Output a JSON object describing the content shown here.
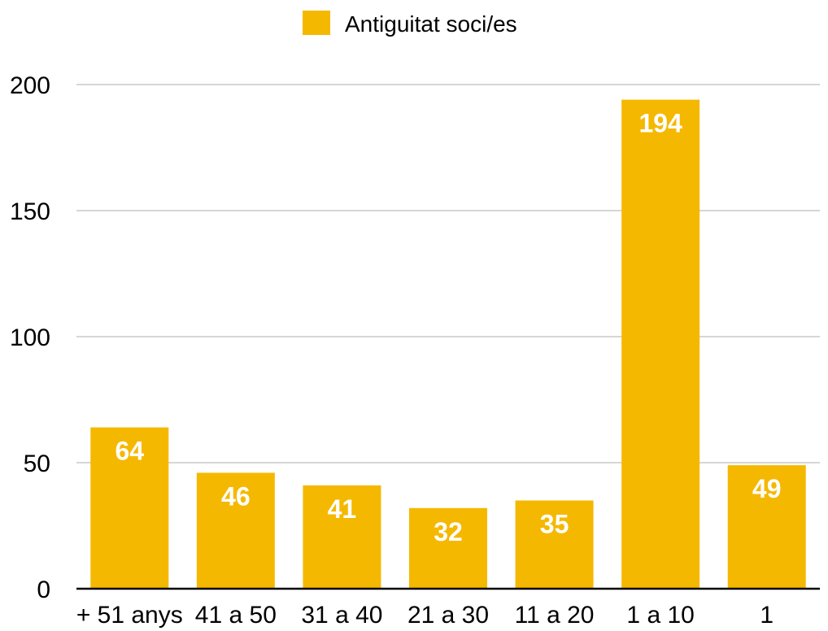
{
  "chart_data": {
    "type": "bar",
    "title": "",
    "xlabel": "",
    "ylabel": "",
    "categories": [
      "+ 51 anys",
      "41 a 50",
      "31 a 40",
      "21 a 30",
      "11 a 20",
      "1 a 10",
      "1"
    ],
    "series": [
      {
        "name": "Antiguitat soci/es",
        "values": [
          64,
          46,
          41,
          32,
          35,
          194,
          49
        ]
      }
    ],
    "ylim": [
      0,
      200
    ],
    "yticks": [
      0,
      50,
      100,
      150,
      200
    ],
    "grid": true,
    "legend_position": "top-center",
    "data_labels": true,
    "colors": {
      "bar": "#F5B800",
      "grid": "#C8C8C8",
      "axis": "#000000",
      "data_label": "#FFFFFF"
    }
  }
}
